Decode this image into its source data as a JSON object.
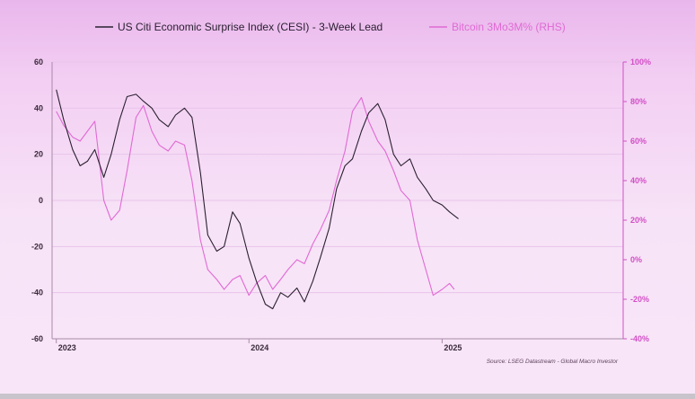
{
  "colors": {
    "cesi": "#2a2030",
    "btc": "#e06ad4",
    "right_axis": "#d24fc6",
    "grid": "#e9c4ea",
    "axis": "#a98aa9"
  },
  "chart_data": {
    "type": "line",
    "legend_placement": "top",
    "grid": true,
    "x_ticks": [
      "2023",
      "2024",
      "2025"
    ],
    "source": "Source: LSEG Datastream - Global Macro Investor",
    "left_axis": {
      "ticks": [
        60,
        40,
        20,
        0,
        -20,
        -40,
        -60
      ],
      "ylim": [
        -60,
        60
      ]
    },
    "right_axis": {
      "ticks": [
        "100%",
        "80%",
        "60%",
        "40%",
        "20%",
        "0%",
        "-20%",
        "-40%"
      ],
      "ylim": [
        -40,
        100
      ]
    },
    "series": [
      {
        "name": "US Citi Economic Surprise Index (CESI) - 3-Week Lead",
        "axis": "left",
        "x": [
          "2023-01-01",
          "2023-01-15",
          "2023-02-01",
          "2023-02-15",
          "2023-03-01",
          "2023-03-15",
          "2023-04-01",
          "2023-04-15",
          "2023-05-01",
          "2023-05-15",
          "2023-06-01",
          "2023-06-15",
          "2023-07-01",
          "2023-07-15",
          "2023-08-01",
          "2023-08-15",
          "2023-09-01",
          "2023-09-15",
          "2023-10-01",
          "2023-10-15",
          "2023-11-01",
          "2023-11-15",
          "2023-12-01",
          "2023-12-15",
          "2024-01-01",
          "2024-01-15",
          "2024-02-01",
          "2024-02-15",
          "2024-03-01",
          "2024-03-15",
          "2024-04-01",
          "2024-04-15",
          "2024-05-01",
          "2024-05-15",
          "2024-06-01",
          "2024-06-15",
          "2024-07-01",
          "2024-07-15",
          "2024-08-01",
          "2024-08-15",
          "2024-09-01",
          "2024-09-15",
          "2024-10-01",
          "2024-10-15",
          "2024-11-01",
          "2024-11-15",
          "2024-12-01",
          "2024-12-15",
          "2025-01-01",
          "2025-01-15",
          "2025-02-01"
        ],
        "values": [
          48,
          35,
          22,
          15,
          17,
          22,
          10,
          20,
          35,
          45,
          46,
          43,
          40,
          35,
          32,
          37,
          40,
          36,
          12,
          -15,
          -22,
          -20,
          -5,
          -10,
          -25,
          -35,
          -45,
          -47,
          -40,
          -42,
          -38,
          -44,
          -35,
          -25,
          -12,
          5,
          15,
          18,
          30,
          38,
          42,
          35,
          20,
          15,
          18,
          10,
          5,
          0,
          -2,
          -5,
          -8
        ]
      },
      {
        "name": "Bitcoin 3Mo3M% (RHS)",
        "axis": "right",
        "x": [
          "2023-01-01",
          "2023-01-15",
          "2023-02-01",
          "2023-02-15",
          "2023-03-01",
          "2023-03-15",
          "2023-04-01",
          "2023-04-15",
          "2023-05-01",
          "2023-05-15",
          "2023-06-01",
          "2023-06-15",
          "2023-07-01",
          "2023-07-15",
          "2023-08-01",
          "2023-08-15",
          "2023-09-01",
          "2023-09-15",
          "2023-10-01",
          "2023-10-15",
          "2023-11-01",
          "2023-11-15",
          "2023-12-01",
          "2023-12-15",
          "2024-01-01",
          "2024-01-15",
          "2024-02-01",
          "2024-02-15",
          "2024-03-01",
          "2024-03-15",
          "2024-04-01",
          "2024-04-15",
          "2024-05-01",
          "2024-05-15",
          "2024-06-01",
          "2024-06-15",
          "2024-07-01",
          "2024-07-15",
          "2024-08-01",
          "2024-08-15",
          "2024-09-01",
          "2024-09-15",
          "2024-10-01",
          "2024-10-15",
          "2024-11-01",
          "2024-11-15",
          "2024-12-01",
          "2024-12-15",
          "2025-01-01",
          "2025-01-15",
          "2025-01-24"
        ],
        "values": [
          75,
          68,
          62,
          60,
          65,
          70,
          30,
          20,
          25,
          45,
          72,
          78,
          65,
          58,
          55,
          60,
          58,
          40,
          10,
          -5,
          -10,
          -15,
          -10,
          -8,
          -18,
          -12,
          -8,
          -15,
          -10,
          -5,
          0,
          -2,
          8,
          15,
          25,
          40,
          55,
          75,
          82,
          70,
          60,
          55,
          45,
          35,
          30,
          10,
          -5,
          -18,
          -15,
          -12,
          -15
        ]
      }
    ]
  }
}
